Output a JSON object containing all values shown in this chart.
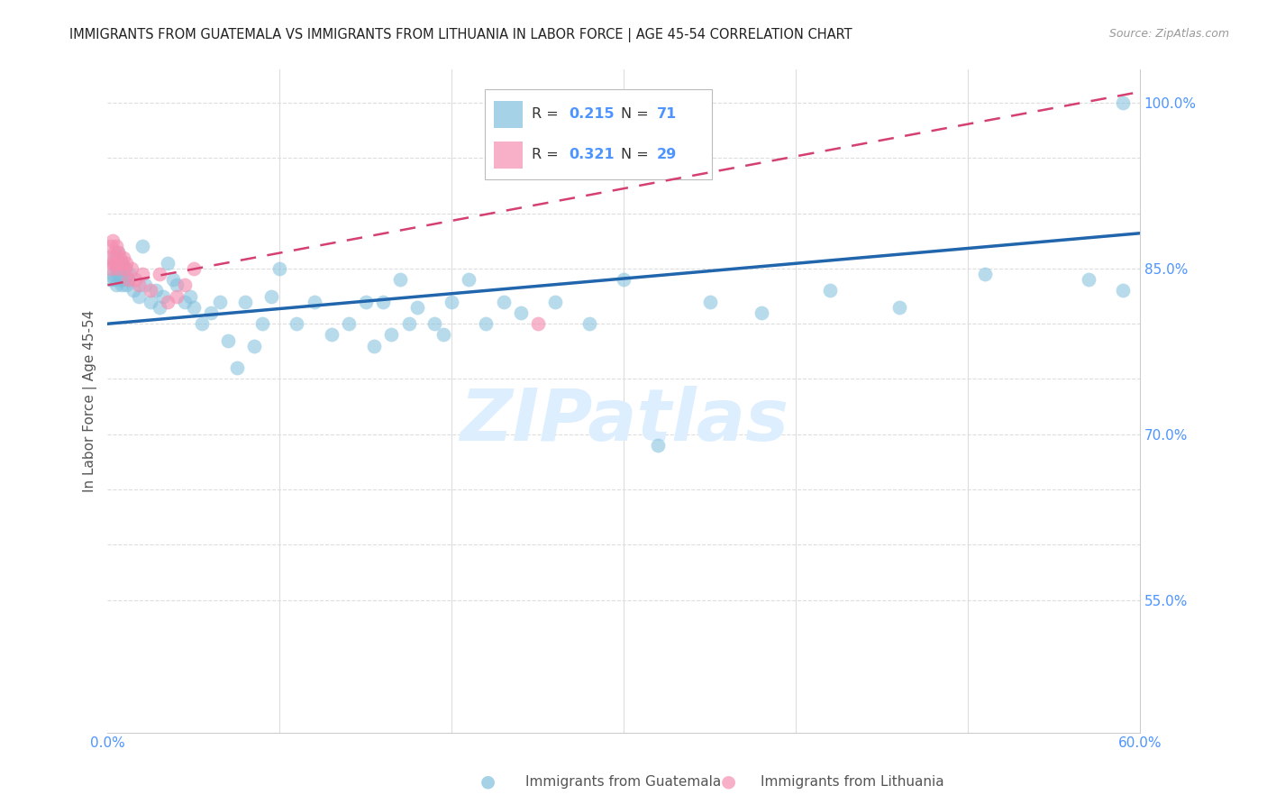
{
  "title": "IMMIGRANTS FROM GUATEMALA VS IMMIGRANTS FROM LITHUANIA IN LABOR FORCE | AGE 45-54 CORRELATION CHART",
  "source": "Source: ZipAtlas.com",
  "ylabel": "In Labor Force | Age 45-54",
  "x_label_guatemala": "Immigrants from Guatemala",
  "x_label_lithuania": "Immigrants from Lithuania",
  "xlim": [
    0.0,
    0.6
  ],
  "ylim": [
    0.43,
    1.03
  ],
  "R_guatemala": 0.215,
  "N_guatemala": 71,
  "R_lithuania": 0.321,
  "N_lithuania": 29,
  "color_guatemala": "#7fbfdd",
  "color_lithuania": "#f48fb1",
  "color_trend_guatemala": "#2166ac",
  "color_trend_lithuania": "#d44070",
  "color_axis_labels": "#4d94ff",
  "watermark_text": "ZIPatlas",
  "watermark_color": "#ddeeff",
  "guat_x": [
    0.002,
    0.003,
    0.004,
    0.004,
    0.005,
    0.005,
    0.006,
    0.006,
    0.007,
    0.007,
    0.008,
    0.008,
    0.009,
    0.01,
    0.011,
    0.012,
    0.013,
    0.015,
    0.018,
    0.02,
    0.022,
    0.025,
    0.028,
    0.03,
    0.032,
    0.035,
    0.038,
    0.04,
    0.045,
    0.048,
    0.05,
    0.055,
    0.06,
    0.065,
    0.07,
    0.075,
    0.08,
    0.085,
    0.09,
    0.095,
    0.1,
    0.11,
    0.12,
    0.13,
    0.14,
    0.15,
    0.16,
    0.165,
    0.17,
    0.18,
    0.19,
    0.2,
    0.21,
    0.22,
    0.23,
    0.24,
    0.26,
    0.28,
    0.3,
    0.32,
    0.195,
    0.175,
    0.155,
    0.35,
    0.38,
    0.42,
    0.46,
    0.51,
    0.57,
    0.59,
    0.59
  ],
  "guat_y": [
    0.84,
    0.845,
    0.84,
    0.86,
    0.85,
    0.835,
    0.845,
    0.865,
    0.84,
    0.85,
    0.835,
    0.855,
    0.84,
    0.85,
    0.835,
    0.84,
    0.845,
    0.83,
    0.825,
    0.87,
    0.835,
    0.82,
    0.83,
    0.815,
    0.825,
    0.855,
    0.84,
    0.835,
    0.82,
    0.825,
    0.815,
    0.8,
    0.81,
    0.82,
    0.785,
    0.76,
    0.82,
    0.78,
    0.8,
    0.825,
    0.85,
    0.8,
    0.82,
    0.79,
    0.8,
    0.82,
    0.82,
    0.79,
    0.84,
    0.815,
    0.8,
    0.82,
    0.84,
    0.8,
    0.82,
    0.81,
    0.82,
    0.8,
    0.84,
    0.69,
    0.79,
    0.8,
    0.78,
    0.82,
    0.81,
    0.83,
    0.815,
    0.845,
    0.84,
    0.83,
    1.0
  ],
  "lith_x": [
    0.001,
    0.002,
    0.002,
    0.003,
    0.003,
    0.004,
    0.004,
    0.005,
    0.005,
    0.006,
    0.006,
    0.007,
    0.008,
    0.009,
    0.01,
    0.011,
    0.012,
    0.014,
    0.016,
    0.018,
    0.02,
    0.025,
    0.03,
    0.035,
    0.04,
    0.045,
    0.05,
    0.25,
    0.342
  ],
  "lith_y": [
    0.86,
    0.85,
    0.87,
    0.855,
    0.875,
    0.855,
    0.865,
    0.87,
    0.855,
    0.85,
    0.865,
    0.86,
    0.855,
    0.86,
    0.85,
    0.855,
    0.84,
    0.85,
    0.84,
    0.835,
    0.845,
    0.83,
    0.845,
    0.82,
    0.825,
    0.835,
    0.85,
    0.8,
    0.98
  ],
  "trend_guat_x0": 0.0,
  "trend_guat_x1": 0.6,
  "trend_guat_y0": 0.8,
  "trend_guat_y1": 0.882,
  "trend_lith_x0": 0.0,
  "trend_lith_x1": 0.6,
  "trend_lith_y0": 0.835,
  "trend_lith_y1": 1.01
}
